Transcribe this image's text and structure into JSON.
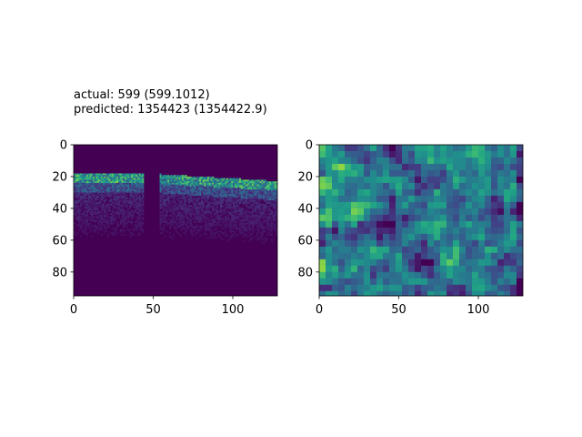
{
  "figure": {
    "title_line1": "actual: 599 (599.1012)",
    "title_line2": "predicted: 1354423 (1354422.9)"
  },
  "chart_data": [
    {
      "type": "heatmap",
      "colormap": "viridis",
      "image_shape": [
        95,
        128
      ],
      "xlim": [
        0,
        128
      ],
      "ylim": [
        95,
        0
      ],
      "xticks": [
        0,
        50,
        100
      ],
      "yticks": [
        0,
        20,
        40,
        60,
        80
      ],
      "description_values": {
        "background": "dark purple (near zero)",
        "bright_band_rows": [
          18,
          30
        ],
        "gap_columns": [
          44,
          54
        ]
      }
    },
    {
      "type": "heatmap",
      "colormap": "viridis",
      "image_shape": [
        95,
        128
      ],
      "xlim": [
        0,
        128
      ],
      "ylim": [
        95,
        0
      ],
      "xticks": [
        0,
        50,
        100
      ],
      "yticks": [
        0,
        20,
        40,
        60,
        80
      ]
    }
  ],
  "colors": {
    "viridis_dark": "#440154",
    "viridis_mid": "#21918c",
    "viridis_bright": "#fde725"
  }
}
